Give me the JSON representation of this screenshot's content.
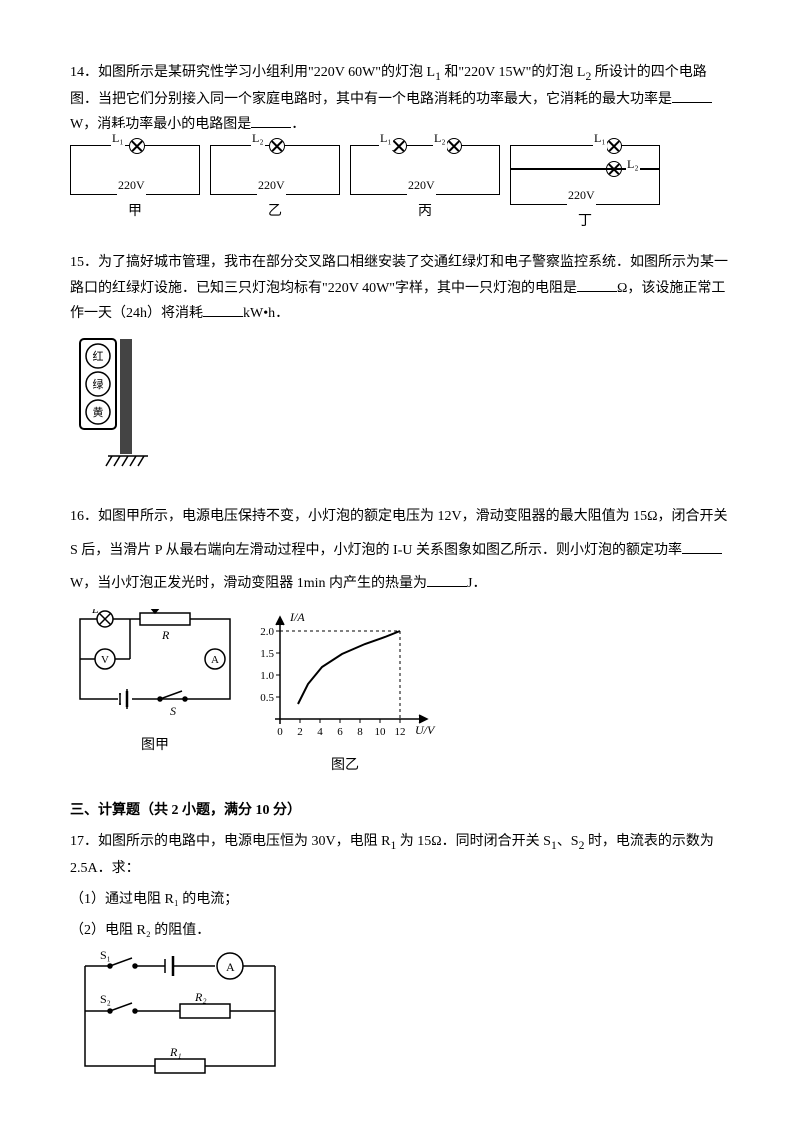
{
  "q14": {
    "num": "14．",
    "text1": "如图所示是某研究性学习小组利用\"220V 60W\"的灯泡 L",
    "sub1": "1",
    "text2": " 和\"220V 15W\"的灯泡 L",
    "sub2": "2",
    "text3": " 所设计的四个电路图．当把它们分别接入同一个家庭电路时，其中有一个电路消耗的功率最大，它消耗的最大功率是",
    "text4": "W，消耗功率最小的电路图是",
    "text5": "．",
    "diagrams": {
      "jia": {
        "L1": "L₁",
        "V": "220V",
        "cap": "甲"
      },
      "yi": {
        "L2": "L₂",
        "V": "220V",
        "cap": "乙"
      },
      "bing": {
        "L1": "L₁",
        "L2": "L₂",
        "V": "220V",
        "cap": "丙"
      },
      "ding": {
        "L1": "L₁",
        "L2": "L₂",
        "V": "220V",
        "cap": "丁"
      }
    }
  },
  "q15": {
    "num": "15．",
    "text1": "为了搞好城市管理，我市在部分交叉路口相继安装了交通红绿灯和电子警察监控系统．如图所示为某一路口的红绿灯设施．已知三只灯泡均标有\"220V 40W\"字样，其中一只灯泡的电阻是",
    "text2": "Ω，该设施正常工作一天（24h）将消耗",
    "text3": "kW•h．",
    "lights": {
      "red": "红",
      "green": "绿",
      "yellow": "黄"
    }
  },
  "q16": {
    "num": "16．",
    "text1": "如图甲所示，电源电压保持不变，小灯泡的额定电压为 12V，滑动变阻器的最大阻值为 15Ω，闭合开关 S 后，当滑片 P 从最右端向左滑动过程中，小灯泡的 I-U 关系图象如图乙所示．则小灯泡的额定功率",
    "text2": "W，当小灯泡正发光时，滑动变阻器 1min 内产生的热量为",
    "text3": "J．",
    "circuit": {
      "L": "L",
      "P": "P",
      "R": "R",
      "V": "V",
      "A": "A",
      "S": "S",
      "cap": "图甲"
    },
    "graph": {
      "ylabel": "I/A",
      "xlabel": "U/V",
      "yticks": [
        "0.5",
        "1.0",
        "1.5",
        "2.0"
      ],
      "xticks": [
        "0",
        "2",
        "4",
        "6",
        "8",
        "10",
        "12"
      ],
      "cap": "图乙",
      "curve": [
        [
          18,
          95
        ],
        [
          26,
          70
        ],
        [
          38,
          55
        ],
        [
          55,
          42
        ],
        [
          80,
          32
        ],
        [
          110,
          25
        ],
        [
          138,
          20
        ]
      ],
      "dash_v": [
        138,
        20,
        138,
        110
      ],
      "dash_h": [
        10,
        20,
        138,
        20
      ]
    }
  },
  "section3": "三、计算题（共 2 小题，满分 10 分）",
  "q17": {
    "num": "17．",
    "text1": "如图所示的电路中，电源电压恒为 30V，电阻 R",
    "sub1": "1",
    "text2": " 为 15Ω．同时闭合开关 S",
    "sub3": "1",
    "text3": "、S",
    "sub4": "2",
    "text4": " 时，电流表的示数为 2.5A．求：",
    "part1": "（1）通过电阻 R₁ 的电流；",
    "part2": "（2）电阻 R₂ 的阻值．",
    "circuit": {
      "S1": "S₁",
      "S2": "S₂",
      "R1": "R₁",
      "R2": "R₂",
      "A": "A"
    }
  }
}
